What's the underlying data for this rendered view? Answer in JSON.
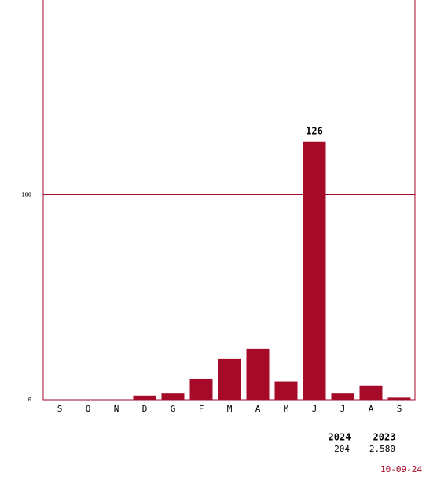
{
  "chart_data": {
    "type": "bar",
    "categories": [
      "S",
      "O",
      "N",
      "D",
      "G",
      "F",
      "M",
      "A",
      "M",
      "J",
      "J",
      "A",
      "S"
    ],
    "values": [
      0,
      0,
      0,
      2,
      3,
      10,
      20,
      25,
      9,
      126,
      3,
      7,
      1
    ],
    "color": "#a50a28",
    "frame_color": "#a50a28",
    "ylim": [
      0,
      195
    ],
    "yticks": [
      0,
      100
    ],
    "grid": true,
    "data_labels": "max"
  },
  "summary": {
    "headers": [
      "2024",
      "2023"
    ],
    "values": [
      "204",
      "2.580"
    ]
  },
  "date": "10-09-24"
}
